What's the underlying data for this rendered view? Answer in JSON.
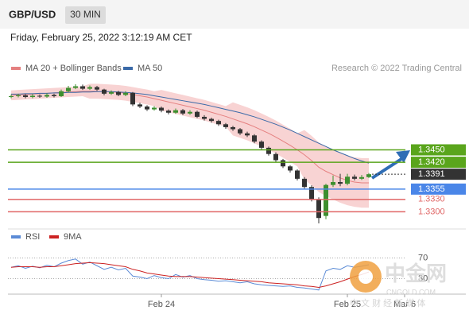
{
  "header": {
    "symbol": "GBP/USD",
    "interval": "30 MIN",
    "timestamp": "Friday, February 25, 2022 3:12:19 AM CET"
  },
  "watermark": {
    "name": "中金网",
    "url": "CNGOLD.COM",
    "tagline": "中 文 财 经 新 媒 体"
  },
  "chart_data": [
    {
      "type": "candlestick",
      "source": "Research © 2022 Trading Central",
      "categories": [
        null,
        null,
        null,
        null,
        null,
        null,
        null,
        null,
        null,
        null,
        null,
        null,
        null,
        null,
        null,
        null,
        null,
        null,
        null,
        null,
        null,
        "Feb 24",
        null,
        null,
        null,
        null,
        null,
        null,
        null,
        null,
        null,
        null,
        null,
        null,
        null,
        null,
        null,
        null,
        null,
        null,
        null,
        null,
        null,
        null,
        null,
        null,
        null,
        "Feb 25",
        null,
        null,
        null,
        null,
        null,
        null,
        null,
        "Mar 6",
        null,
        null,
        null,
        null,
        null,
        null,
        null
      ],
      "open": [
        1.3578,
        1.358,
        1.3582,
        1.3578,
        1.3581,
        1.3579,
        1.3583,
        1.358,
        1.3592,
        1.36,
        1.3604,
        1.3598,
        1.3602,
        1.3596,
        1.3586,
        1.359,
        1.3583,
        1.3588,
        1.356,
        1.3555,
        1.3548,
        1.3552,
        1.3545,
        1.354,
        1.3546,
        1.3538,
        1.3542,
        1.353,
        1.3525,
        1.352,
        1.3512,
        1.3505,
        1.35,
        1.349,
        1.3485,
        1.347,
        1.3455,
        1.344,
        1.3425,
        1.341,
        1.34,
        1.338,
        1.336,
        1.333,
        1.329,
        1.3365,
        1.3372,
        1.3368,
        1.3385,
        1.338,
        1.3384,
        null,
        null,
        null,
        null,
        null,
        null,
        null,
        null,
        null,
        null,
        null,
        null
      ],
      "high": [
        1.3584,
        1.3586,
        1.3585,
        1.3585,
        1.3584,
        1.3587,
        1.3586,
        1.3596,
        1.3605,
        1.3609,
        1.3608,
        1.3606,
        1.3605,
        1.3598,
        1.3594,
        1.3593,
        1.3592,
        1.359,
        1.3564,
        1.3558,
        1.3556,
        1.3555,
        1.3548,
        1.355,
        1.3549,
        1.3546,
        1.3545,
        1.3534,
        1.3528,
        1.3523,
        1.3515,
        1.3508,
        1.3503,
        1.3494,
        1.3488,
        1.3473,
        1.3458,
        1.3444,
        1.3428,
        1.3413,
        1.3403,
        1.3384,
        1.3364,
        1.3335,
        1.3368,
        1.3388,
        1.3392,
        1.3392,
        1.339,
        1.3389,
        1.3394,
        null,
        null,
        null,
        null,
        null,
        null,
        null,
        null,
        null,
        null,
        null,
        null
      ],
      "low": [
        1.3575,
        1.3577,
        1.3575,
        1.3575,
        1.3576,
        1.3576,
        1.3577,
        1.3578,
        1.3589,
        1.3597,
        1.3595,
        1.3595,
        1.3593,
        1.3582,
        1.3583,
        1.358,
        1.358,
        1.3556,
        1.3551,
        1.3544,
        1.3545,
        1.3541,
        1.3536,
        1.3537,
        1.3534,
        1.3535,
        1.3527,
        1.3521,
        1.3516,
        1.3508,
        1.3501,
        1.3496,
        1.3486,
        1.3481,
        1.3466,
        1.3451,
        1.3436,
        1.3421,
        1.3406,
        1.3395,
        1.3376,
        1.3355,
        1.3325,
        1.3272,
        1.3282,
        1.336,
        1.3362,
        1.3364,
        1.3376,
        1.3377,
        1.3382,
        null,
        null,
        null,
        null,
        null,
        null,
        null,
        null,
        null,
        null,
        null,
        null
      ],
      "close": [
        1.358,
        1.3582,
        1.3578,
        1.3581,
        1.3579,
        1.3583,
        1.358,
        1.3592,
        1.36,
        1.3604,
        1.3598,
        1.3602,
        1.3596,
        1.3586,
        1.359,
        1.3583,
        1.3588,
        1.356,
        1.3555,
        1.3548,
        1.3552,
        1.3545,
        1.354,
        1.3546,
        1.3538,
        1.3542,
        1.353,
        1.3525,
        1.352,
        1.3512,
        1.3505,
        1.35,
        1.349,
        1.3485,
        1.347,
        1.3455,
        1.344,
        1.3425,
        1.341,
        1.34,
        1.338,
        1.336,
        1.333,
        1.3285,
        1.3365,
        1.3372,
        1.3368,
        1.3385,
        1.338,
        1.3384,
        1.3391,
        null,
        null,
        null,
        null,
        null,
        null,
        null,
        null,
        null,
        null,
        null,
        null
      ],
      "up_color": "#3d8f2f",
      "down_color": "#333333",
      "band_color": "#f8d3d3",
      "series": [
        {
          "name": "MA 20 + Bollinger Bands",
          "color": "#e58080",
          "values": [
            1.3582,
            1.3583,
            1.3584,
            1.3585,
            1.3586,
            1.3587,
            1.3588,
            1.3589,
            1.359,
            1.3591,
            1.3592,
            1.3592,
            1.3592,
            1.3591,
            1.359,
            1.3589,
            1.3587,
            1.3584,
            1.3581,
            1.3578,
            1.3574,
            1.357,
            1.3566,
            1.3562,
            1.3558,
            1.3554,
            1.355,
            1.3546,
            1.3541,
            1.3536,
            1.3531,
            1.3525,
            1.3519,
            1.3513,
            1.3506,
            1.3498,
            1.349,
            1.3481,
            1.3471,
            1.3461,
            1.345,
            1.3438,
            1.3424,
            1.3408,
            1.3398,
            1.339,
            1.3382,
            1.3376,
            1.3372,
            1.337,
            1.337,
            null,
            null,
            null,
            null,
            null,
            null,
            null,
            null,
            null,
            null,
            null,
            null
          ],
          "upper": [
            1.3594,
            1.3595,
            1.3596,
            1.3597,
            1.3598,
            1.3599,
            1.36,
            1.3601,
            1.3602,
            1.3603,
            1.3604,
            1.361,
            1.361,
            1.3609,
            1.3608,
            1.3607,
            1.3605,
            1.3602,
            1.3599,
            1.3596,
            1.3592,
            1.3595,
            1.3591,
            1.3587,
            1.3583,
            1.3579,
            1.3575,
            1.3571,
            1.3566,
            1.3561,
            1.3556,
            1.3565,
            1.3559,
            1.3553,
            1.3546,
            1.3538,
            1.353,
            1.3521,
            1.3511,
            1.3501,
            1.349,
            1.3498,
            1.3484,
            1.3468,
            1.3458,
            1.345,
            1.3442,
            1.3436,
            1.3432,
            1.343,
            1.343,
            null,
            null,
            null,
            null,
            null,
            null,
            null,
            null,
            null,
            null,
            null,
            null
          ],
          "lower": [
            1.357,
            1.3571,
            1.3572,
            1.3573,
            1.3574,
            1.3575,
            1.3576,
            1.3577,
            1.3578,
            1.3579,
            1.358,
            1.3574,
            1.3574,
            1.3573,
            1.3572,
            1.3571,
            1.3569,
            1.3566,
            1.3563,
            1.356,
            1.3556,
            1.3545,
            1.3541,
            1.3537,
            1.3533,
            1.3529,
            1.3525,
            1.3521,
            1.3516,
            1.3511,
            1.3506,
            1.3485,
            1.3479,
            1.3473,
            1.3466,
            1.3458,
            1.345,
            1.3441,
            1.3431,
            1.3421,
            1.341,
            1.3378,
            1.3364,
            1.3348,
            1.3338,
            1.333,
            1.3322,
            1.3316,
            1.3312,
            1.331,
            1.331,
            null,
            null,
            null,
            null,
            null,
            null,
            null,
            null,
            null,
            null,
            null,
            null
          ]
        },
        {
          "name": "MA 50",
          "color": "#3b6aa8",
          "values": [
            1.3585,
            1.3585,
            1.3586,
            1.3586,
            1.3587,
            1.3587,
            1.3588,
            1.3588,
            1.3589,
            1.3589,
            1.359,
            1.359,
            1.3591,
            1.3591,
            1.3591,
            1.359,
            1.3589,
            1.3588,
            1.3586,
            1.3584,
            1.3581,
            1.3578,
            1.3575,
            1.3572,
            1.3569,
            1.3566,
            1.3563,
            1.356,
            1.3556,
            1.3552,
            1.3548,
            1.3544,
            1.354,
            1.3535,
            1.353,
            1.3524,
            1.3518,
            1.3512,
            1.3505,
            1.3498,
            1.349,
            1.3482,
            1.3474,
            1.3466,
            1.3458,
            1.345,
            1.3443,
            1.3436,
            1.3429,
            1.3423,
            1.3418,
            null,
            null,
            null,
            null,
            null,
            null,
            null,
            null,
            null,
            null,
            null,
            null
          ]
        }
      ],
      "levels": [
        {
          "value": 1.345,
          "label": "1.3450",
          "color": "#5aa51c",
          "boxed": true,
          "dotted": false
        },
        {
          "value": 1.342,
          "label": "1.3420",
          "color": "#5aa51c",
          "boxed": true,
          "dotted": false
        },
        {
          "value": 1.3391,
          "label": "1.3391",
          "color": "#333333",
          "boxed": true,
          "dotted": true
        },
        {
          "value": 1.3355,
          "label": "1.3355",
          "color": "#4a86e8",
          "boxed": true,
          "dotted": false
        },
        {
          "value": 1.333,
          "label": "1.3330",
          "color": "#e06666",
          "boxed": false,
          "dotted": false
        },
        {
          "value": 1.33,
          "label": "1.3300",
          "color": "#e06666",
          "boxed": false,
          "dotted": false
        }
      ],
      "ylim": [
        1.327,
        1.363
      ]
    },
    {
      "type": "line",
      "ylim": [
        0,
        100
      ],
      "yticks": [
        30,
        70
      ],
      "grid": true,
      "series": [
        {
          "name": "RSI",
          "color": "#5b8bd6",
          "values": [
            52,
            55,
            50,
            54,
            51,
            56,
            53,
            60,
            65,
            68,
            58,
            62,
            55,
            48,
            52,
            47,
            50,
            35,
            33,
            30,
            36,
            32,
            30,
            38,
            33,
            36,
            30,
            28,
            27,
            25,
            26,
            24,
            22,
            24,
            20,
            18,
            17,
            16,
            15,
            16,
            13,
            12,
            10,
            8,
            45,
            50,
            48,
            55,
            52,
            54,
            57,
            null,
            null,
            null,
            null,
            null,
            null,
            null,
            null,
            null,
            null,
            null,
            null
          ]
        },
        {
          "name": "9MA",
          "color": "#cc2222",
          "values": [
            52,
            53,
            53,
            53,
            52,
            53,
            53,
            55,
            57,
            59,
            60,
            61,
            60,
            59,
            57,
            55,
            53,
            48,
            45,
            41,
            39,
            37,
            35,
            34,
            34,
            34,
            33,
            32,
            31,
            30,
            29,
            28,
            27,
            26,
            25,
            24,
            22,
            21,
            20,
            19,
            18,
            16,
            15,
            13,
            16,
            20,
            24,
            29,
            34,
            38,
            43,
            null,
            null,
            null,
            null,
            null,
            null,
            null,
            null,
            null,
            null,
            null,
            null
          ]
        }
      ]
    }
  ]
}
